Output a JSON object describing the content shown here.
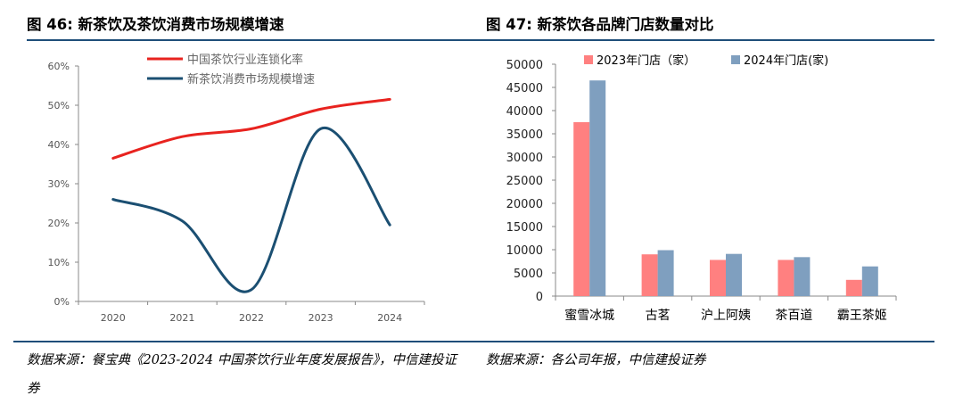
{
  "left": {
    "title": "图 46: 新茶饮及茶饮消费市场规模增速",
    "source": "数据来源：餐宝典《2023-2024 中国茶饮行业年度发展报告》，中信建投证券",
    "colors": {
      "red": "#e8231f",
      "blue": "#1b4f72"
    }
  },
  "right": {
    "title": "图 47: 新茶饮各品牌门店数量对比",
    "source": "数据来源：各公司年报，中信建投证券",
    "colors": {
      "c2023": "#ff8080",
      "c2024": "#7f9fbf"
    }
  },
  "rule_color": "#1f4e79",
  "chart_data": [
    {
      "type": "line",
      "title": "",
      "x": [
        "2020",
        "2021",
        "2022",
        "2023",
        "2024"
      ],
      "series": [
        {
          "name": "中国茶饮行业连锁化率",
          "values": [
            0.365,
            0.42,
            0.44,
            0.49,
            0.515
          ]
        },
        {
          "name": "新茶饮消费市场规模增速",
          "values": [
            0.26,
            0.205,
            0.03,
            0.44,
            0.195
          ]
        }
      ],
      "ylim": [
        0,
        0.6
      ],
      "yticks": [
        "0%",
        "10%",
        "20%",
        "30%",
        "40%",
        "50%",
        "60%"
      ],
      "legend": "top-center",
      "grid": false
    },
    {
      "type": "bar",
      "title": "",
      "categories": [
        "蜜雪冰城",
        "古茗",
        "沪上阿姨",
        "茶百道",
        "霸王茶姬"
      ],
      "series": [
        {
          "name": "2023年门店（家）",
          "values": [
            37500,
            9000,
            7800,
            7800,
            3500
          ]
        },
        {
          "name": "2024年门店(家)",
          "values": [
            46500,
            9900,
            9100,
            8400,
            6400
          ]
        }
      ],
      "ylim": [
        0,
        50000
      ],
      "yticks": [
        "0",
        "5000",
        "10000",
        "15000",
        "20000",
        "25000",
        "30000",
        "35000",
        "40000",
        "45000",
        "50000"
      ],
      "legend": "top-center",
      "grid": false
    }
  ]
}
